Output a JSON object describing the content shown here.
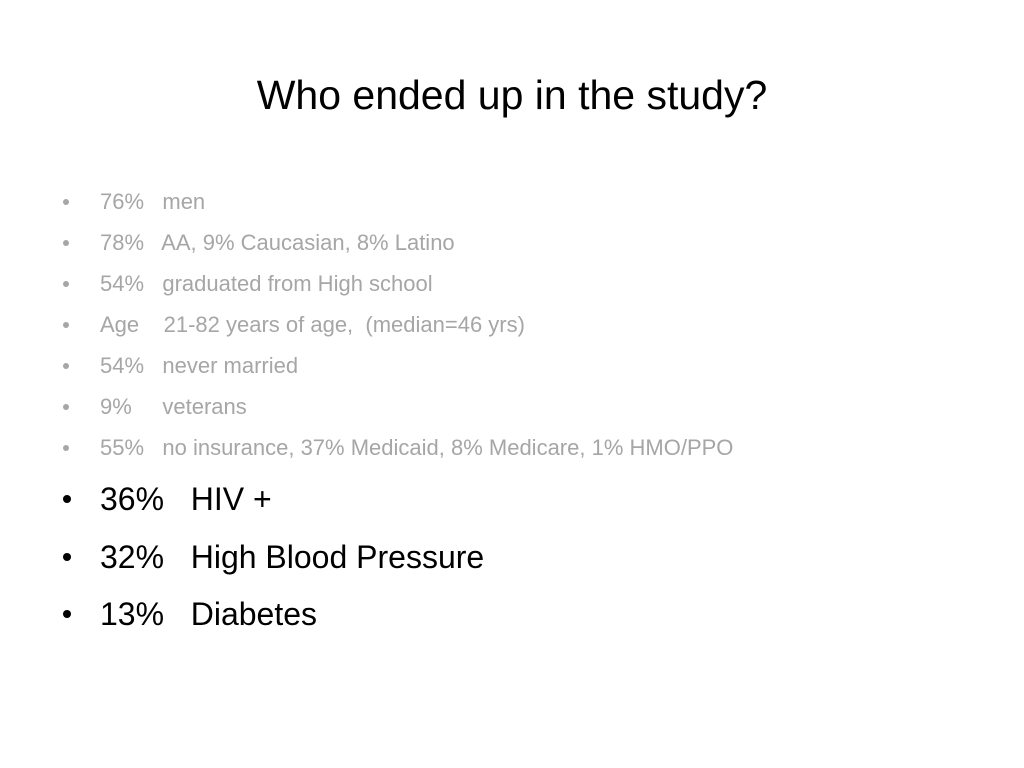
{
  "slide": {
    "title": "Who ended up in the study?",
    "secondary_bullets": [
      "76%   men",
      "78%   AA, 9% Caucasian, 8% Latino",
      "54%   graduated from High school",
      "Age    21-82 years of age,  (median=46 yrs)",
      "54%   never married",
      "9%     veterans",
      "55%   no insurance, 37% Medicaid, 8% Medicare, 1% HMO/PPO"
    ],
    "primary_bullets": [
      "36%   HIV +",
      "32%   High Blood Pressure",
      "13%   Diabetes"
    ]
  }
}
